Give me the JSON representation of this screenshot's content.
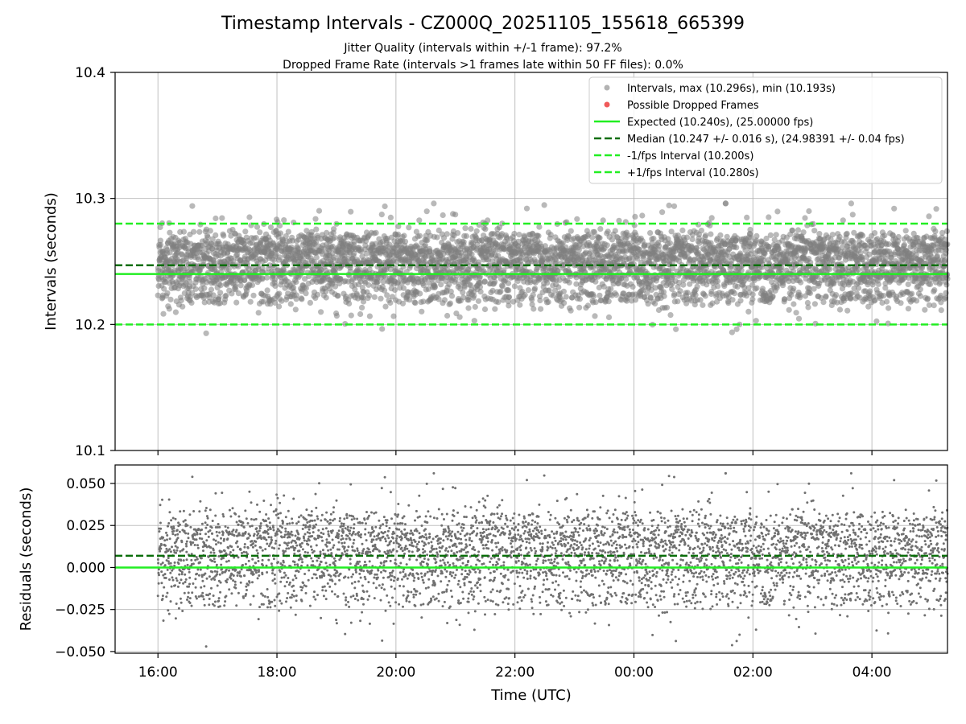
{
  "chart_data": [
    {
      "type": "scatter",
      "title": "Timestamp Intervals - CZ000Q_20251105_155618_665399",
      "subtitle_lines": [
        "Jitter Quality (intervals within +/-1 frame): 97.2%",
        "Dropped Frame Rate (intervals >1 frames late within 50 FF files): 0.0%"
      ],
      "ylabel": "Intervals (seconds)",
      "ylim": [
        10.1,
        10.4
      ],
      "yticks": [
        "10.1",
        "10.2",
        "10.3",
        "10.4"
      ],
      "yticks_values": [
        10.1,
        10.2,
        10.3,
        10.4
      ],
      "xlim_hours": [
        -0.72,
        13.27
      ],
      "x_start_hour": 0.0,
      "x_end_hour": 13.27,
      "grid": true,
      "legend_position": "top-right",
      "series": [
        {
          "name": "Intervals, max (10.296s), min (10.193s)",
          "kind": "points",
          "color": "#808080",
          "max": 10.296,
          "min": 10.193,
          "median": 10.247,
          "count": 4600
        },
        {
          "name": "Possible Dropped Frames",
          "kind": "points",
          "color": "#f05a5a",
          "count": 0
        },
        {
          "name": "Expected (10.240s), (25.00000 fps)",
          "kind": "hline",
          "y": 10.24,
          "color": "#22ee22",
          "style": "solid"
        },
        {
          "name": "Median (10.247 +/- 0.016 s), (24.98391 +/- 0.04 fps)",
          "kind": "hline",
          "y": 10.247,
          "color": "#0a6e0a",
          "style": "dashed"
        },
        {
          "name": "-1/fps Interval (10.200s)",
          "kind": "hline",
          "y": 10.2,
          "color": "#22ee22",
          "style": "dashed"
        },
        {
          "name": "+1/fps Interval (10.280s)",
          "kind": "hline",
          "y": 10.28,
          "color": "#22ee22",
          "style": "dashed"
        }
      ]
    },
    {
      "type": "scatter",
      "ylabel": "Residuals (seconds)",
      "xlabel": "Time (UTC)",
      "ylim": [
        -0.051,
        0.061
      ],
      "yticks": [
        "−0.050",
        "−0.025",
        "0.000",
        "0.025",
        "0.050"
      ],
      "yticks_values": [
        -0.05,
        -0.025,
        0.0,
        0.025,
        0.05
      ],
      "xticks": [
        "16:00",
        "18:00",
        "20:00",
        "22:00",
        "00:00",
        "02:00",
        "04:00"
      ],
      "xticks_hours": [
        0,
        2,
        4,
        6,
        8,
        10,
        12
      ],
      "xlim_hours": [
        -0.72,
        13.27
      ],
      "grid": true,
      "series": [
        {
          "name": "Residuals",
          "kind": "points",
          "color": "#707070",
          "max": 0.056,
          "min": -0.047
        },
        {
          "name": "Expected",
          "kind": "hline",
          "y": 0.0,
          "color": "#22ee22",
          "style": "solid"
        },
        {
          "name": "Median offset",
          "kind": "hline",
          "y": 0.007,
          "color": "#0a6e0a",
          "style": "dashed"
        }
      ]
    }
  ]
}
